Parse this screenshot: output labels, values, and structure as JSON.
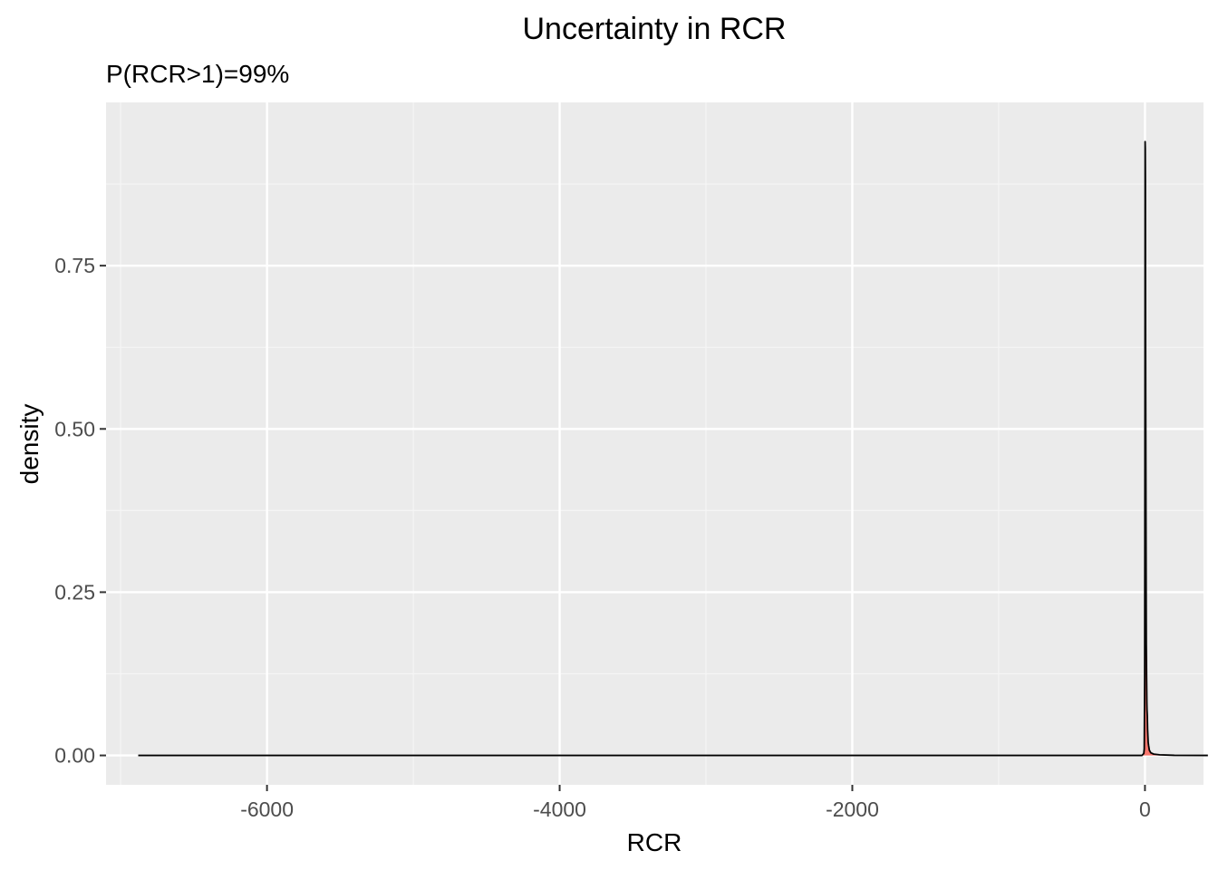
{
  "chart_data": {
    "type": "area",
    "title": "Uncertainty in RCR",
    "subtitle": "P(RCR>1)=99%",
    "xlabel": "RCR",
    "ylabel": "density",
    "xlim": [
      -7100,
      400
    ],
    "ylim": [
      -0.045,
      1.0
    ],
    "x_ticks": [
      -6000,
      -4000,
      -2000,
      0
    ],
    "x_tick_labels": [
      "-6000",
      "-4000",
      "-2000",
      "0"
    ],
    "x_minor_ticks": [
      -7000,
      -5000,
      -3000,
      -1000
    ],
    "y_ticks": [
      0.0,
      0.25,
      0.5,
      0.75
    ],
    "y_tick_labels": [
      "0.00",
      "0.25",
      "0.50",
      "0.75"
    ],
    "y_minor_ticks": [
      0.125,
      0.375,
      0.625,
      0.875
    ],
    "grid": true,
    "series": [
      {
        "fill": "#f8766d",
        "line": "#000000",
        "x": [
          -6880,
          -1000,
          -20,
          -8,
          -5,
          -3,
          -2,
          -1,
          0,
          1,
          2,
          3,
          4,
          5,
          6,
          7,
          8,
          9,
          10,
          11,
          12,
          13,
          14,
          15,
          16,
          17,
          18,
          19,
          20,
          22,
          25,
          30,
          40,
          60,
          100,
          200,
          430
        ],
        "y": [
          0,
          0,
          0,
          0.003,
          0.01,
          0.08,
          0.12,
          0.3,
          0.56,
          0.94,
          0.93,
          0.88,
          0.7,
          0.55,
          0.45,
          0.35,
          0.25,
          0.17,
          0.15,
          0.12,
          0.1,
          0.08,
          0.07,
          0.065,
          0.06,
          0.05,
          0.04,
          0.035,
          0.03,
          0.02,
          0.015,
          0.008,
          0.004,
          0.002,
          0.001,
          0.0002,
          0
        ]
      }
    ]
  },
  "colors": {
    "panel_background": "#ebebeb",
    "grid_major": "#ffffff",
    "grid_minor": "#f5f5f5",
    "tick_text": "#4d4d4d",
    "area_fill": "#f8766d",
    "area_line": "#000000"
  }
}
